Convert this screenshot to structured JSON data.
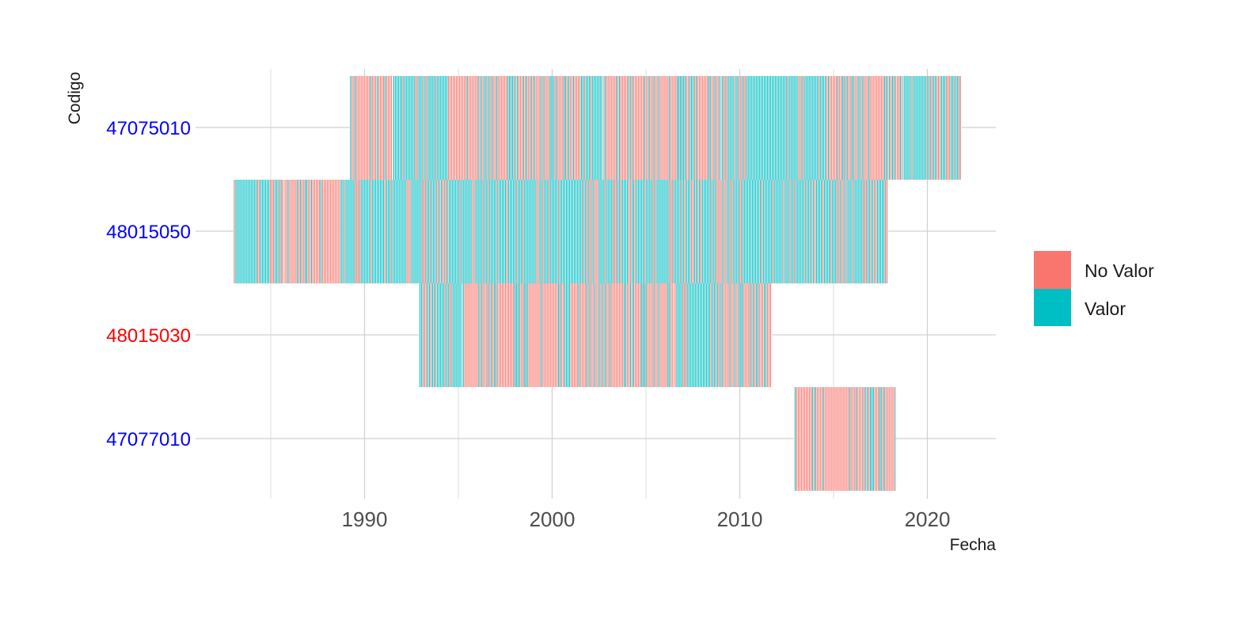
{
  "chart_data": {
    "type": "heatmap",
    "title": "",
    "xlabel": "Fecha",
    "ylabel": "Codigo",
    "x_ticks": [
      1990,
      2000,
      2010,
      2020
    ],
    "xlim": [
      1983,
      2023.8
    ],
    "grid": true,
    "legend_placement": "right",
    "legend": [
      {
        "name": "No Valor",
        "color": "#F8766D"
      },
      {
        "name": "Valor",
        "color": "#00BFC4"
      }
    ],
    "categories": [
      {
        "name": "47075010",
        "label_color": "#0000FF"
      },
      {
        "name": "48015050",
        "label_color": "#0000FF"
      },
      {
        "name": "48015030",
        "label_color": "#FF0000"
      },
      {
        "name": "47077010",
        "label_color": "#0000FF"
      }
    ],
    "series": [
      {
        "name": "47075010",
        "segments": [
          {
            "start": 1989.2,
            "end": 1991.5,
            "status": "mixed",
            "dominant": "No Valor"
          },
          {
            "start": 1991.5,
            "end": 1994.5,
            "status": "mixed",
            "dominant": "Valor"
          },
          {
            "start": 1994.5,
            "end": 2001.5,
            "status": "mixed",
            "dominant": "No Valor"
          },
          {
            "start": 2001.5,
            "end": 2002.7,
            "status": "mixed",
            "dominant": "Valor"
          },
          {
            "start": 2002.7,
            "end": 2009.0,
            "status": "mixed",
            "dominant": "No Valor"
          },
          {
            "start": 2009.0,
            "end": 2014.5,
            "status": "mixed",
            "dominant": "Valor"
          },
          {
            "start": 2014.5,
            "end": 2018.7,
            "status": "mixed",
            "dominant": "No Valor"
          },
          {
            "start": 2018.7,
            "end": 2021.8,
            "status": "mixed",
            "dominant": "Valor"
          }
        ]
      },
      {
        "name": "48015050",
        "segments": [
          {
            "start": 1983.0,
            "end": 1985.7,
            "status": "mixed",
            "dominant": "Valor"
          },
          {
            "start": 1985.7,
            "end": 1988.7,
            "status": "mixed",
            "dominant": "No Valor"
          },
          {
            "start": 1988.7,
            "end": 2017.9,
            "status": "mixed",
            "dominant": "Valor"
          }
        ]
      },
      {
        "name": "48015030",
        "segments": [
          {
            "start": 1992.9,
            "end": 1995.2,
            "status": "mixed",
            "dominant": "Valor"
          },
          {
            "start": 1995.2,
            "end": 2006.5,
            "status": "mixed",
            "dominant": "No Valor"
          },
          {
            "start": 2006.5,
            "end": 2009.0,
            "status": "mixed",
            "dominant": "Valor"
          },
          {
            "start": 2009.0,
            "end": 2011.7,
            "status": "mixed",
            "dominant": "No Valor"
          }
        ]
      },
      {
        "name": "47077010",
        "segments": [
          {
            "start": 2012.9,
            "end": 2018.3,
            "status": "mixed",
            "dominant": "No Valor"
          }
        ]
      }
    ]
  }
}
